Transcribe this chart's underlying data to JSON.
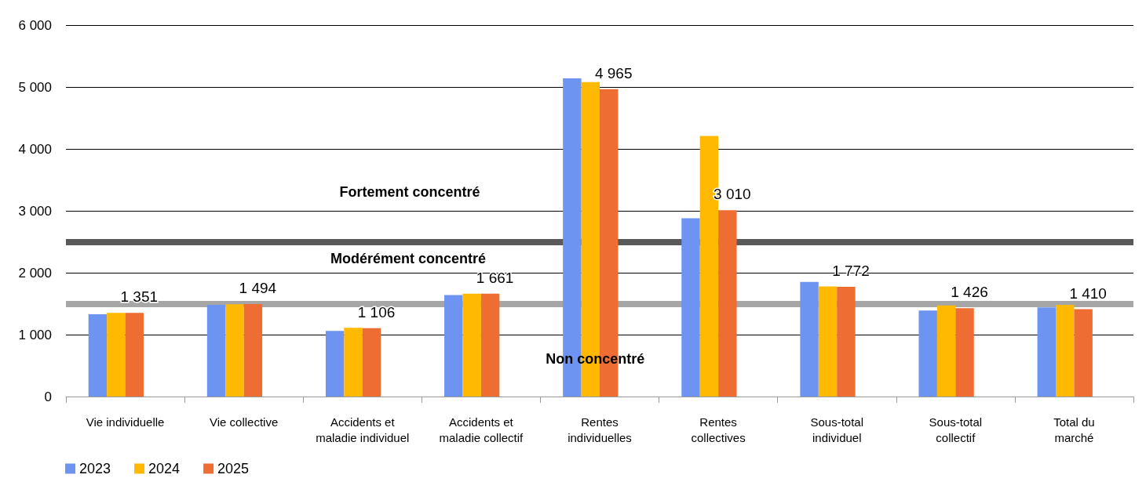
{
  "chart_data": {
    "type": "bar",
    "categories": [
      "Vie individuelle",
      "Vie collective",
      "Accidents et\nmaladie individuel",
      "Accidents et\nmaladie collectif",
      "Rentes\nindividuelles",
      "Rentes\ncollectives",
      "Sous-total\nindividuel",
      "Sous-total\ncollectif",
      "Total du\nmarché"
    ],
    "series": [
      {
        "name": "2023",
        "color": "#6d94f0",
        "values": [
          1330,
          1480,
          1060,
          1640,
          5140,
          2880,
          1850,
          1390,
          1440
        ]
      },
      {
        "name": "2024",
        "color": "#ffb900",
        "values": [
          1350,
          1490,
          1110,
          1660,
          5080,
          4210,
          1780,
          1470,
          1480
        ]
      },
      {
        "name": "2025",
        "color": "#ed6d33",
        "values": [
          1351,
          1494,
          1106,
          1661,
          4965,
          3010,
          1772,
          1426,
          1410
        ],
        "value_labels": [
          "1 351",
          "1 494",
          "1 106",
          "1 661",
          "4 965",
          "3 010",
          "1 772",
          "1 426",
          "1 410"
        ]
      }
    ],
    "ylim": [
      0,
      6000
    ],
    "yticks": [
      {
        "value": 0,
        "label": "0"
      },
      {
        "value": 1000,
        "label": "1 000"
      },
      {
        "value": 2000,
        "label": "2 000"
      },
      {
        "value": 3000,
        "label": "3 000"
      },
      {
        "value": 4000,
        "label": "4 000"
      },
      {
        "value": 5000,
        "label": "5 000"
      },
      {
        "value": 6000,
        "label": "6 000"
      }
    ],
    "grid": "y",
    "legend": "bottom left",
    "ref_lines": [
      {
        "axis": "y",
        "value": 2500,
        "color": "#595959"
      },
      {
        "axis": "y",
        "value": 1500,
        "color": "#a6a6a6"
      }
    ],
    "annotations": [
      "Fortement concentré",
      "Modérément concentré",
      "Non concentré"
    ]
  }
}
